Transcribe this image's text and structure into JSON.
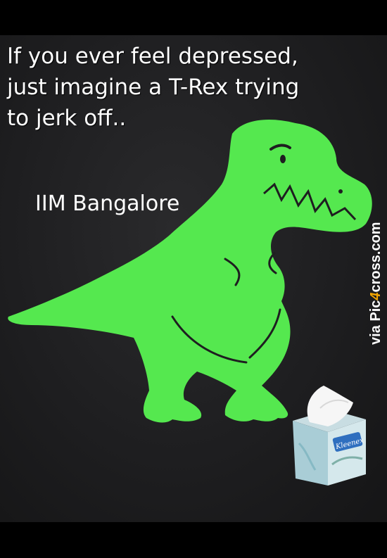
{
  "caption": {
    "line1": "If you ever feel depressed,",
    "line2": "just imagine a T-Rex trying",
    "line3": "to jerk off.."
  },
  "attribution": "IIM Bangalore",
  "watermark": {
    "prefix": "via Pic",
    "mark": "4",
    "suffix": "cross.com"
  },
  "tissue_box": {
    "brand": "Kleenex"
  },
  "colors": {
    "background": "#1e1e20",
    "dinosaur": "#55e84f",
    "text": "#ffffff",
    "watermark_accent": "#f2a400"
  },
  "icons": {
    "dinosaur": "t-rex-illustration",
    "tissue_box": "tissue-box-illustration"
  }
}
